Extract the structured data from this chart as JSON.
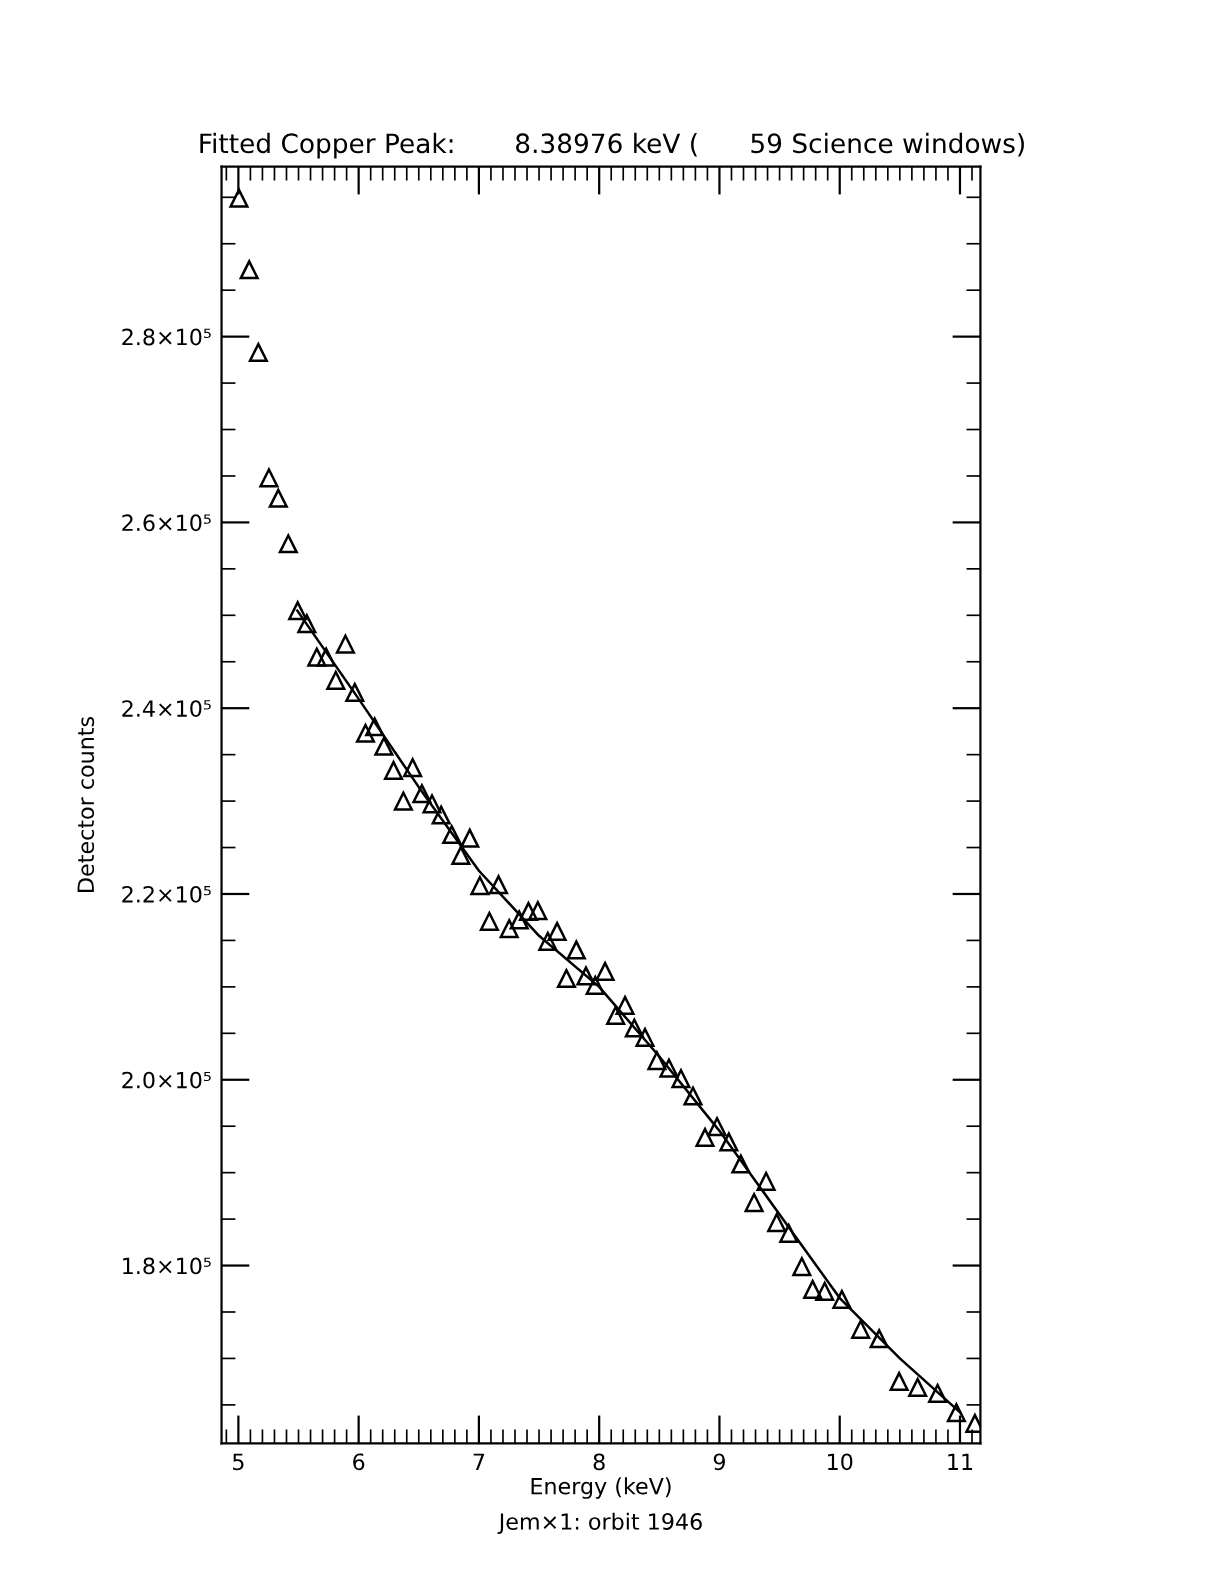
{
  "chart_data": {
    "type": "scatter",
    "title": "Fitted Copper Peak:       8.38976 keV (      59 Science windows)",
    "xlabel": "Energy (keV)",
    "ylabel": "Detector counts",
    "annotations": [
      "Jem×1: orbit 1946"
    ],
    "xlim": [
      4.86,
      11.17
    ],
    "ylim": [
      160860,
      298300
    ],
    "xticks": [
      5,
      6,
      7,
      8,
      9,
      10,
      11
    ],
    "yticks": [
      {
        "value": 180000,
        "label": "1.8×10⁵"
      },
      {
        "value": 200000,
        "label": "2.0×10⁵"
      },
      {
        "value": 220000,
        "label": "2.2×10⁵"
      },
      {
        "value": 240000,
        "label": "2.4×10⁵"
      },
      {
        "value": 260000,
        "label": "2.6×10⁵"
      },
      {
        "value": 280000,
        "label": "2.8×10⁵"
      }
    ],
    "grid": false,
    "legend": false,
    "series": [
      {
        "marker": "triangle",
        "color": "#000000",
        "x": [
          5.005,
          5.09,
          5.166,
          5.254,
          5.332,
          5.415,
          5.493,
          5.569,
          5.652,
          5.73,
          5.81,
          5.89,
          5.968,
          6.057,
          6.133,
          6.21,
          6.29,
          6.372,
          6.449,
          6.526,
          6.61,
          6.686,
          6.774,
          6.85,
          6.924,
          7.008,
          7.087,
          7.163,
          7.252,
          7.335,
          7.412,
          7.49,
          7.573,
          7.65,
          7.728,
          7.81,
          7.89,
          7.967,
          8.049,
          8.137,
          8.215,
          8.292,
          8.381,
          8.48,
          8.58,
          8.68,
          8.78,
          8.88,
          8.98,
          9.078,
          9.178,
          9.288,
          9.388,
          9.476,
          9.576,
          9.685,
          9.775,
          9.875,
          10.018,
          10.174,
          10.328,
          10.494,
          10.648,
          10.814,
          10.97,
          11.124
        ],
        "values": [
          294900,
          287200,
          278300,
          264800,
          262600,
          257700,
          250500,
          249100,
          245500,
          245500,
          243000,
          246900,
          241700,
          237300,
          238000,
          235900,
          233300,
          230000,
          233600,
          230800,
          229700,
          228500,
          226400,
          224150,
          226000,
          220900,
          217050,
          221000,
          216270,
          217200,
          218120,
          218210,
          214900,
          215970,
          210900,
          213970,
          211170,
          210160,
          211660,
          206930,
          208000,
          205570,
          204560,
          202060,
          201260,
          200120,
          198250,
          193790,
          194960,
          193300,
          190930,
          186780,
          189060,
          184620,
          183460,
          179890,
          177430,
          177220,
          176350,
          173130,
          172130,
          167520,
          166880,
          166240,
          164160,
          163000
        ]
      },
      {
        "type": "line",
        "line_style": "solid",
        "color": "#000000",
        "x": [
          5.49,
          6.0,
          6.5,
          7.0,
          7.5,
          8.0,
          8.5,
          9.0,
          9.5,
          10.0,
          10.5,
          11.0
        ],
        "values": [
          250500,
          241000,
          231500,
          222500,
          215500,
          210000,
          202500,
          194500,
          185500,
          176500,
          170000,
          164200
        ]
      }
    ]
  }
}
